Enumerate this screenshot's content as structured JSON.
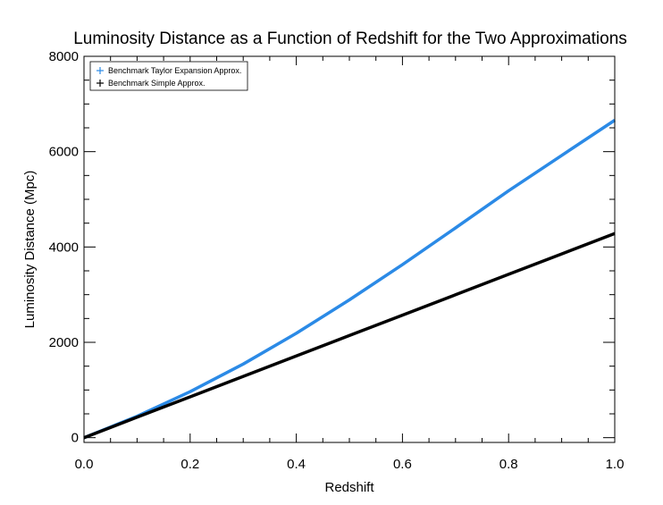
{
  "chart_data": {
    "type": "line",
    "title": "Luminosity Distance as a Function of Redshift for the Two Approximations",
    "xlabel": "Redshift",
    "ylabel": "Luminosity Distance (Mpc)",
    "xlim": [
      0,
      1
    ],
    "ylim": [
      -100,
      8000
    ],
    "xticks": [
      0,
      0.2,
      0.4,
      0.6,
      0.8,
      1
    ],
    "yticks": [
      0,
      2000,
      4000,
      6000,
      8000
    ],
    "xtick_labels": [
      "0.0",
      "0.2",
      "0.4",
      "0.6",
      "0.8",
      "1.0"
    ],
    "ytick_labels": [
      "0",
      "2000",
      "4000",
      "6000",
      "8000"
    ],
    "grid": false,
    "legend_position": "top-left",
    "x": [
      0,
      0.1,
      0.2,
      0.3,
      0.4,
      0.5,
      0.6,
      0.7,
      0.8,
      0.9,
      1.0
    ],
    "series": [
      {
        "name": "Benchmark Taylor Expansion Approx.",
        "color": "#2b8ae6",
        "values": [
          0,
          450,
          965,
          1545,
          2190,
          2890,
          3630,
          4400,
          5180,
          5920,
          6660
        ]
      },
      {
        "name": "Benchmark Simple Approx.",
        "color": "#000000",
        "values": [
          0,
          428,
          857,
          1285,
          1713,
          2142,
          2570,
          2998,
          3427,
          3855,
          4283
        ]
      }
    ]
  }
}
